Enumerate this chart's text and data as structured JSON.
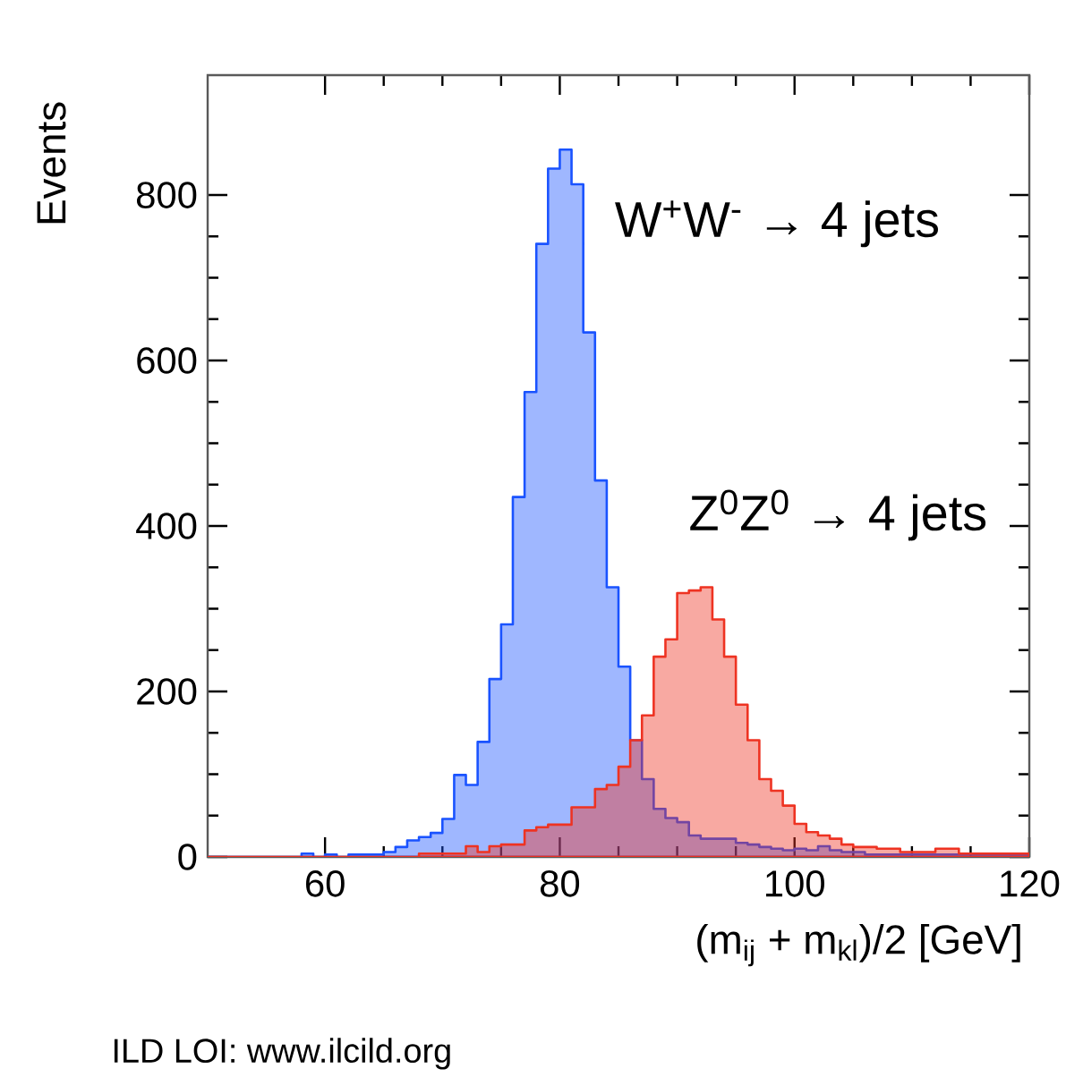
{
  "chart_data": {
    "type": "histogram",
    "xlabel": "(m$_{ij}$ + m$_{kl}$)/2 [GeV]",
    "ylabel": "Events",
    "bins": [
      50,
      51,
      52,
      53,
      54,
      55,
      56,
      57,
      58,
      59,
      60,
      61,
      62,
      63,
      64,
      65,
      66,
      67,
      68,
      69,
      70,
      71,
      72,
      73,
      74,
      75,
      76,
      77,
      78,
      79,
      80,
      81,
      82,
      83,
      84,
      85,
      86,
      87,
      88,
      89,
      90,
      91,
      92,
      93,
      94,
      95,
      96,
      97,
      98,
      99,
      100,
      101,
      102,
      103,
      104,
      105,
      106,
      107,
      108,
      109,
      110,
      111,
      112,
      113,
      114,
      115,
      116,
      117,
      118,
      119,
      120
    ],
    "series": [
      {
        "name": "W$^{+}$W$^{-}$ → 4 jets",
        "color": "#1a53ff",
        "values": [
          0,
          0,
          0,
          0,
          0,
          0,
          0,
          0,
          4,
          0,
          3,
          0,
          3,
          3,
          3,
          6,
          12,
          20,
          24,
          29,
          46,
          99,
          87,
          139,
          215,
          281,
          435,
          562,
          741,
          832,
          855,
          813,
          634,
          455,
          326,
          230,
          141,
          94,
          58,
          47,
          42,
          26,
          22,
          22,
          22,
          17,
          15,
          12,
          10,
          8,
          10,
          8,
          13,
          8,
          6,
          6,
          3,
          3,
          3,
          3,
          3,
          3,
          3,
          3,
          3,
          3,
          3,
          3,
          3,
          3
        ]
      },
      {
        "name": "Z$^{0}$Z$^{0}$ → 4 jets",
        "color": "#ee3322",
        "values": [
          0,
          0,
          0,
          0,
          0,
          0,
          0,
          0,
          0,
          0,
          0,
          0,
          0,
          0,
          0,
          0,
          0,
          0,
          4,
          4,
          4,
          4,
          13,
          6,
          13,
          15,
          15,
          32,
          36,
          39,
          39,
          60,
          60,
          82,
          87,
          109,
          141,
          171,
          242,
          263,
          319,
          322,
          326,
          287,
          242,
          184,
          141,
          94,
          80,
          62,
          40,
          30,
          26,
          22,
          15,
          12,
          12,
          10,
          10,
          6,
          6,
          6,
          10,
          10,
          4,
          4,
          4,
          4,
          4,
          4
        ]
      }
    ],
    "xlim": [
      50,
      120
    ],
    "ylim": [
      0,
      945
    ],
    "xticks": [
      60,
      80,
      100,
      120
    ],
    "yticks": [
      0,
      200,
      400,
      600,
      800
    ],
    "annotations": [
      "ILD LOI: www.ilcild.org"
    ]
  }
}
